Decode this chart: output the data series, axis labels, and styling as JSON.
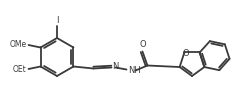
{
  "bg_color": "#ffffff",
  "line_color": "#3a3a3a",
  "line_width": 1.3,
  "figsize": [
    2.31,
    1.09
  ],
  "dpi": 100,
  "font_size": 6.0,
  "font_size_small": 5.5,
  "xlim": [
    0,
    231
  ],
  "ylim": [
    0,
    109
  ]
}
